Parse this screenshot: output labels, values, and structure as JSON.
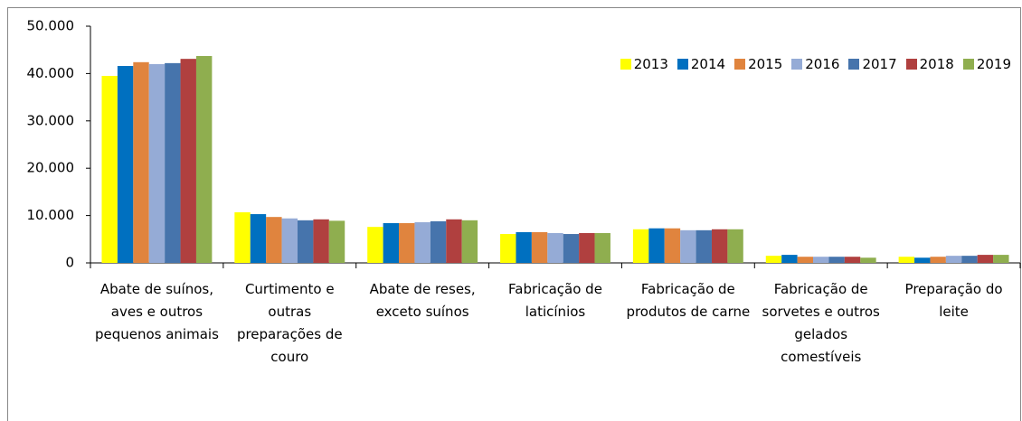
{
  "chart_data": {
    "type": "bar",
    "categories": [
      "Abate de suínos, aves e outros pequenos animais",
      "Curtimento e outras preparações de couro",
      "Abate de reses, exceto suínos",
      "Fabricação de laticínios",
      "Fabricação de produtos de carne",
      "Fabricação de sorvetes e outros gelados comestíveis",
      "Preparação do leite"
    ],
    "series": [
      {
        "name": "2013",
        "color": "#ffff00",
        "values": [
          39500,
          10700,
          7600,
          6100,
          7100,
          1500,
          1300
        ]
      },
      {
        "name": "2014",
        "color": "#0070c0",
        "values": [
          41600,
          10300,
          8400,
          6500,
          7300,
          1700,
          1100
        ]
      },
      {
        "name": "2015",
        "color": "#e0843e",
        "values": [
          42400,
          9700,
          8400,
          6500,
          7300,
          1300,
          1300
        ]
      },
      {
        "name": "2016",
        "color": "#95abd6",
        "values": [
          42000,
          9400,
          8600,
          6300,
          6900,
          1300,
          1500
        ]
      },
      {
        "name": "2017",
        "color": "#4674ac",
        "values": [
          42200,
          9000,
          8800,
          6100,
          6900,
          1300,
          1500
        ]
      },
      {
        "name": "2018",
        "color": "#b0403f",
        "values": [
          43100,
          9200,
          9200,
          6300,
          7100,
          1300,
          1700
        ]
      },
      {
        "name": "2019",
        "color": "#8fae4f",
        "values": [
          43700,
          8900,
          9000,
          6300,
          7100,
          1100,
          1700
        ]
      }
    ],
    "ylim": [
      0,
      50000
    ],
    "yticks": [
      0,
      {
        "value": 10000,
        "label": "10.000"
      },
      {
        "value": 20000,
        "label": "20.000"
      },
      {
        "value": 30000,
        "label": "30.000"
      },
      {
        "value": 40000,
        "label": "40.000"
      },
      {
        "value": 50000,
        "label": "50.000"
      }
    ],
    "legend": "top-right"
  }
}
